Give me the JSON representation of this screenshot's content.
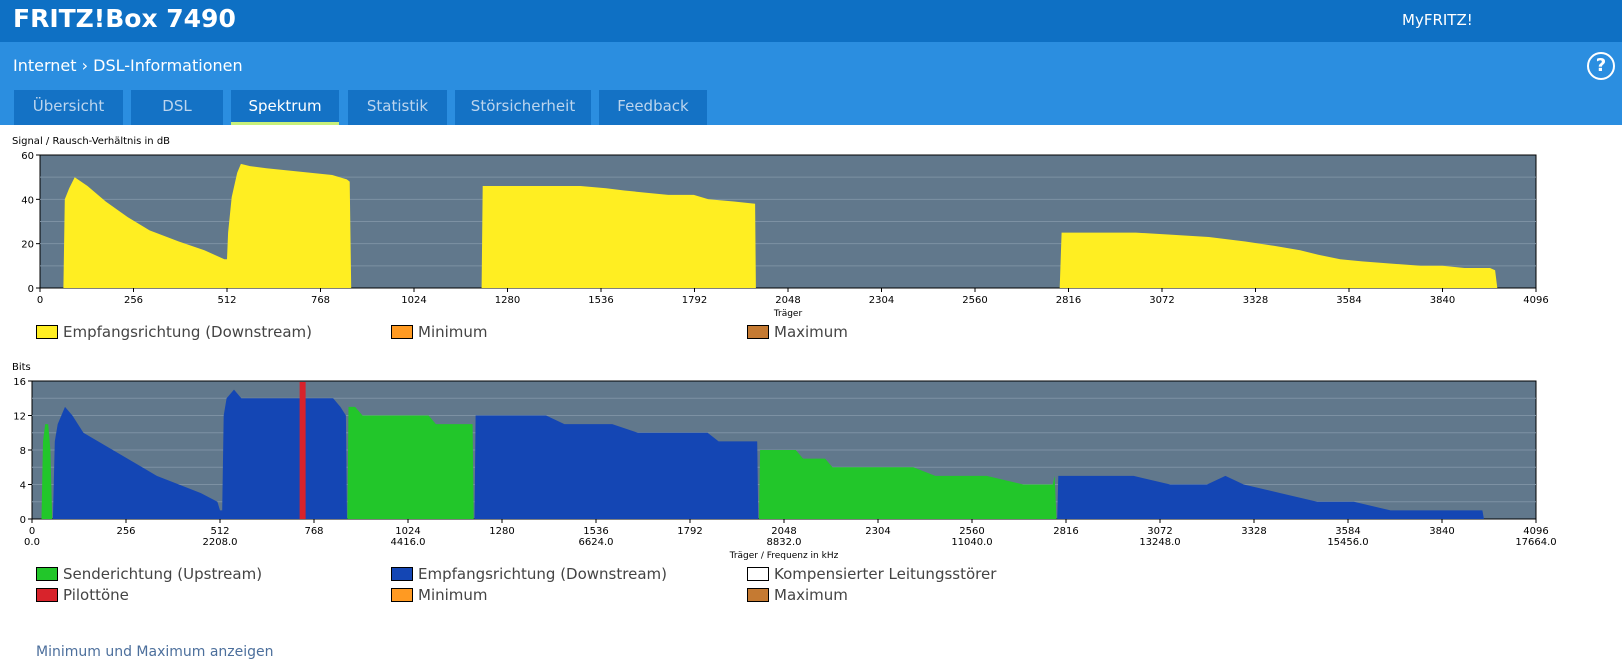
{
  "header": {
    "brand": "FRITZ!Box 7490",
    "myfritz": "MyFRITZ!",
    "breadcrumb": [
      "Internet",
      "DSL-Informationen"
    ],
    "breadcrumb_sep": "›",
    "help_symbol": "?"
  },
  "tabs": [
    {
      "label": "Übersicht",
      "active": false
    },
    {
      "label": "DSL",
      "active": false
    },
    {
      "label": "Spektrum",
      "active": true
    },
    {
      "label": "Statistik",
      "active": false
    },
    {
      "label": "Störsicherheit",
      "active": false
    },
    {
      "label": "Feedback",
      "active": false
    }
  ],
  "colors": {
    "header": "#0e70c4",
    "subheader": "#2b8ee0",
    "tab": "#1472c5",
    "tab_underline": "#c8f07a",
    "plot_bg": "#61788c",
    "downstream_snr": "#ffee22",
    "upstream": "#22c62a",
    "downstream_bits": "#1446b4",
    "pilot": "#d8232b",
    "minimum": "#ff9a22",
    "maximum": "#c57a32",
    "kompensiert": "#ffffff"
  },
  "chart_data": [
    {
      "type": "area",
      "title": "Signal / Rausch-Verhältnis in dB",
      "ylabel": "Signal / Rausch-Verhältnis in dB",
      "xlabel": "Träger",
      "xlim": [
        0,
        4096
      ],
      "ylim": [
        0,
        60
      ],
      "yticks": [
        "0",
        "20",
        "40",
        "60"
      ],
      "xticks": [
        "0",
        "256",
        "512",
        "768",
        "1024",
        "1280",
        "1536",
        "1792",
        "2048",
        "2304",
        "2560",
        "2816",
        "3072",
        "3328",
        "3584",
        "3840",
        "4096"
      ],
      "grid": true,
      "series": [
        {
          "name": "Empfangsrichtung (Downstream)",
          "color": "#ffee22",
          "segments": [
            [
              [
                64,
                0
              ],
              [
                68,
                40
              ],
              [
                80,
                45
              ],
              [
                95,
                50
              ],
              [
                130,
                46
              ],
              [
                180,
                39
              ],
              [
                240,
                32
              ],
              [
                300,
                26
              ],
              [
                380,
                21
              ],
              [
                450,
                17
              ],
              [
                505,
                13
              ],
              [
                512,
                13
              ],
              [
                515,
                25
              ],
              [
                525,
                41
              ],
              [
                540,
                52
              ],
              [
                550,
                56
              ],
              [
                575,
                55
              ],
              [
                620,
                54
              ],
              [
                680,
                53
              ],
              [
                740,
                52
              ],
              [
                800,
                51
              ],
              [
                840,
                49
              ],
              [
                848,
                48
              ],
              [
                852,
                0
              ]
            ],
            [
              [
                1209,
                0
              ],
              [
                1212,
                46
              ],
              [
                1300,
                46
              ],
              [
                1400,
                46
              ],
              [
                1480,
                46
              ],
              [
                1550,
                45
              ],
              [
                1600,
                44
              ],
              [
                1660,
                43
              ],
              [
                1720,
                42
              ],
              [
                1790,
                42
              ],
              [
                1830,
                40
              ],
              [
                1900,
                39
              ],
              [
                1958,
                38
              ],
              [
                1960,
                0
              ]
            ],
            [
              [
                2792,
                0
              ],
              [
                2797,
                25
              ],
              [
                2900,
                25
              ],
              [
                3000,
                25
              ],
              [
                3100,
                24
              ],
              [
                3200,
                23
              ],
              [
                3300,
                21
              ],
              [
                3380,
                19
              ],
              [
                3450,
                17
              ],
              [
                3500,
                15
              ],
              [
                3560,
                13
              ],
              [
                3620,
                12
              ],
              [
                3700,
                11
              ],
              [
                3780,
                10
              ],
              [
                3840,
                10
              ],
              [
                3900,
                9
              ],
              [
                3970,
                9
              ],
              [
                3984,
                8
              ],
              [
                3990,
                0
              ]
            ]
          ]
        }
      ]
    },
    {
      "type": "area",
      "title": "Bits",
      "ylabel": "Bits",
      "xlabel": "Träger / Frequenz in kHz",
      "xlim": [
        0,
        4096
      ],
      "ylim": [
        0,
        16
      ],
      "yticks": [
        "0",
        "4",
        "8",
        "12",
        "16"
      ],
      "xticks": [
        "0",
        "256",
        "512",
        "768",
        "1024",
        "1280",
        "1536",
        "1792",
        "2048",
        "2304",
        "2560",
        "2816",
        "3072",
        "3328",
        "3584",
        "3840",
        "4096"
      ],
      "freq_ticks": [
        "0.0",
        "2208.0",
        "4416.0",
        "6624.0",
        "8832.0",
        "11040.0",
        "13248.0",
        "15456.0",
        "17664.0"
      ],
      "grid": true,
      "series": [
        {
          "name": "Senderichtung (Upstream)",
          "color": "#22c62a",
          "segments": [
            [
              [
                26,
                0
              ],
              [
                30,
                9
              ],
              [
                36,
                11
              ],
              [
                44,
                11
              ],
              [
                50,
                8
              ],
              [
                55,
                0
              ]
            ],
            [
              [
                859,
                0
              ],
              [
                862,
                13
              ],
              [
                880,
                13
              ],
              [
                900,
                12
              ],
              [
                960,
                12
              ],
              [
                1080,
                12
              ],
              [
                1100,
                11
              ],
              [
                1200,
                11
              ],
              [
                1203,
                0
              ]
            ],
            [
              [
                1980,
                0
              ],
              [
                1983,
                8
              ],
              [
                2080,
                8
              ],
              [
                2100,
                7
              ],
              [
                2160,
                7
              ],
              [
                2180,
                6
              ],
              [
                2300,
                6
              ],
              [
                2400,
                6
              ],
              [
                2460,
                5
              ],
              [
                2600,
                5
              ],
              [
                2700,
                4
              ],
              [
                2780,
                4
              ],
              [
                2785,
                5
              ],
              [
                2790,
                0
              ]
            ]
          ]
        },
        {
          "name": "Empfangsrichtung (Downstream)",
          "color": "#1446b4",
          "segments": [
            [
              [
                57,
                0
              ],
              [
                62,
                9
              ],
              [
                70,
                11
              ],
              [
                90,
                13
              ],
              [
                110,
                12
              ],
              [
                140,
                10
              ],
              [
                180,
                9
              ],
              [
                220,
                8
              ],
              [
                260,
                7
              ],
              [
                300,
                6
              ],
              [
                340,
                5
              ],
              [
                400,
                4
              ],
              [
                460,
                3
              ],
              [
                505,
                2
              ],
              [
                512,
                1
              ],
              [
                518,
                1
              ],
              [
                522,
                12
              ],
              [
                530,
                14
              ],
              [
                550,
                15
              ],
              [
                570,
                14
              ],
              [
                700,
                14
              ],
              [
                760,
                14
              ],
              [
                820,
                14
              ],
              [
                840,
                13
              ],
              [
                855,
                12
              ],
              [
                858,
                0
              ]
            ],
            [
              [
                1205,
                0
              ],
              [
                1208,
                12
              ],
              [
                1300,
                12
              ],
              [
                1400,
                12
              ],
              [
                1450,
                11
              ],
              [
                1500,
                11
              ],
              [
                1580,
                11
              ],
              [
                1650,
                10
              ],
              [
                1720,
                10
              ],
              [
                1800,
                10
              ],
              [
                1840,
                10
              ],
              [
                1870,
                9
              ],
              [
                1950,
                9
              ],
              [
                1975,
                9
              ],
              [
                1978,
                0
              ]
            ],
            [
              [
                2792,
                0
              ],
              [
                2795,
                5
              ],
              [
                2900,
                5
              ],
              [
                3000,
                5
              ],
              [
                3100,
                4
              ],
              [
                3200,
                4
              ],
              [
                3250,
                5
              ],
              [
                3300,
                4
              ],
              [
                3400,
                3
              ],
              [
                3500,
                2
              ],
              [
                3600,
                2
              ],
              [
                3700,
                1
              ],
              [
                3900,
                1
              ],
              [
                3950,
                1
              ],
              [
                3954,
                0
              ]
            ]
          ]
        },
        {
          "name": "Pilottöne",
          "color": "#d8232b",
          "bars": [
            737
          ]
        }
      ]
    }
  ],
  "legend_snr": [
    {
      "label": "Empfangsrichtung (Downstream)",
      "color": "#ffee22"
    },
    {
      "label": "Minimum",
      "color": "#ff9a22"
    },
    {
      "label": "Maximum",
      "color": "#c57a32"
    }
  ],
  "legend_bits": [
    {
      "label": "Senderichtung (Upstream)",
      "color": "#22c62a"
    },
    {
      "label": "Empfangsrichtung (Downstream)",
      "color": "#1446b4"
    },
    {
      "label": "Kompensierter Leitungsstörer",
      "color": "#ffffff"
    },
    {
      "label": "Pilottöne",
      "color": "#d8232b"
    },
    {
      "label": "Minimum",
      "color": "#ff9a22"
    },
    {
      "label": "Maximum",
      "color": "#c57a32"
    }
  ],
  "link_show_minmax": "Minimum und Maximum anzeigen"
}
